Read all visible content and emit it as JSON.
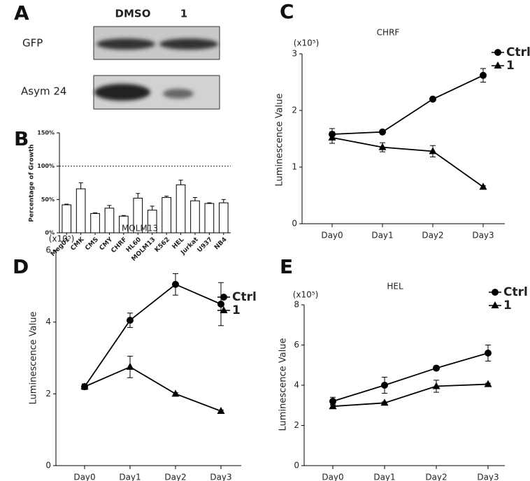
{
  "blot": {
    "panel_label": "A",
    "lanes": [
      "DMSO",
      "1"
    ],
    "rows": [
      "GFP",
      "Asym 24"
    ]
  },
  "chart_data": [
    {
      "type": "bar",
      "panel_label": "B",
      "y_label": "Percentage of Growth",
      "categories": [
        "Meg01",
        "CMK",
        "CMS",
        "CMY",
        "CHRF",
        "HL60",
        "MOLM13",
        "K562",
        "HEL",
        "Jurkat",
        "U937",
        "NB4"
      ],
      "values": [
        42,
        66,
        29,
        37,
        25,
        52,
        34,
        53,
        72,
        48,
        44,
        45
      ],
      "errors": [
        1,
        9,
        1,
        4,
        1,
        7,
        6,
        2,
        7,
        5,
        1,
        5
      ],
      "color": "#ffffff",
      "reference_line": 100,
      "ylim": [
        0,
        150
      ],
      "yticks": [
        {
          "value": 0,
          "label": "0%"
        },
        {
          "value": 50,
          "label": "50%"
        },
        {
          "value": 100,
          "label": "100%"
        },
        {
          "value": 150,
          "label": "150%"
        }
      ]
    },
    {
      "type": "line",
      "panel_label": "C",
      "title": "CHRF",
      "unit_label": "(x10⁵)",
      "y_label": "Luminescence Value",
      "categories": [
        "Day0",
        "Day1",
        "Day2",
        "Day3"
      ],
      "series": [
        {
          "name": "Ctrl",
          "color": "#000000",
          "marker": "circle",
          "values": [
            1.58,
            1.62,
            2.2,
            2.62
          ],
          "errors": [
            0.1,
            0.02,
            0.03,
            0.12
          ]
        },
        {
          "name": "1",
          "color": "#000000",
          "marker": "triangle",
          "values": [
            1.52,
            1.35,
            1.28,
            0.65
          ],
          "errors": [
            0.1,
            0.08,
            0.1,
            0.02
          ]
        }
      ],
      "ylim": [
        0,
        3
      ],
      "yticks": [
        0,
        1,
        2,
        3
      ]
    },
    {
      "type": "line",
      "panel_label": "D",
      "title": "MOLM13",
      "unit_label": "(x10⁵)",
      "y_label": "Luminescence Value",
      "categories": [
        "Day0",
        "Day1",
        "Day2",
        "Day3"
      ],
      "series": [
        {
          "name": "Ctrl",
          "color": "#000000",
          "marker": "circle",
          "values": [
            2.2,
            4.05,
            5.05,
            4.5
          ],
          "errors": [
            0.08,
            0.2,
            0.3,
            0.6
          ]
        },
        {
          "name": "1",
          "color": "#000000",
          "marker": "triangle",
          "values": [
            2.2,
            2.75,
            2.0,
            1.52
          ],
          "errors": [
            0.05,
            0.3,
            0.03,
            0.03
          ]
        }
      ],
      "ylim": [
        0,
        6
      ],
      "yticks": [
        0,
        2,
        4,
        6
      ]
    },
    {
      "type": "line",
      "panel_label": "E",
      "title": "HEL",
      "unit_label": "(x10⁵)",
      "y_label": "Luminescence Value",
      "categories": [
        "Day0",
        "Day1",
        "Day2",
        "Day3"
      ],
      "series": [
        {
          "name": "Ctrl",
          "color": "#000000",
          "marker": "circle",
          "values": [
            3.2,
            4.0,
            4.85,
            5.6
          ],
          "errors": [
            0.2,
            0.4,
            0.1,
            0.4
          ]
        },
        {
          "name": "1",
          "color": "#000000",
          "marker": "triangle",
          "values": [
            2.95,
            3.12,
            3.95,
            4.05
          ],
          "errors": [
            0.1,
            0.05,
            0.3,
            0.05
          ]
        }
      ],
      "ylim": [
        0,
        8
      ],
      "yticks": [
        0,
        2,
        4,
        6,
        8
      ]
    }
  ]
}
